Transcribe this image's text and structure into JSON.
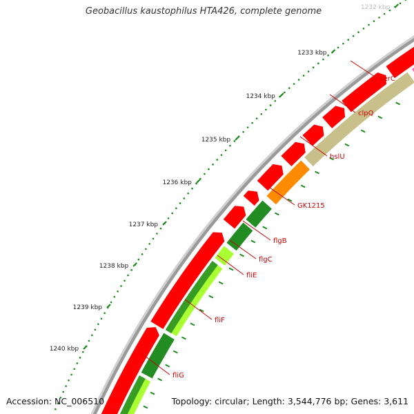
{
  "title": "Geobacillus kaustophilus HTA426, complete genome",
  "accession": "Accession: NC_006510",
  "summary": "Topology: circular; Length: 3,544,776 bp; Genes: 3,611",
  "colors": {
    "backbone": "#9a9a9a",
    "dots": "#1a8a1a",
    "label": "#cc0000",
    "forward_gene": "#ff0000",
    "xerC": "#ff1493",
    "clpQ": "#ff69b4",
    "hslU": "#c8c08a",
    "GK1215": "#ff8c00",
    "flg_dark": "#228b22",
    "flg_light": "#aaff33"
  },
  "scale_ticks": [
    {
      "label": "1232 kbp",
      "faded": true
    },
    {
      "label": "1233 kbp"
    },
    {
      "label": "1234 kbp"
    },
    {
      "label": "1235 kbp"
    },
    {
      "label": "1236 kbp"
    },
    {
      "label": "1237 kbp"
    },
    {
      "label": "1238 kbp"
    },
    {
      "label": "1239 kbp"
    },
    {
      "label": "1240 kbp"
    }
  ],
  "gene_labels": [
    "xerC",
    "clpQ",
    "hslU",
    "GK1215",
    "flgB",
    "flgC",
    "fliE",
    "fliF",
    "fliG"
  ]
}
